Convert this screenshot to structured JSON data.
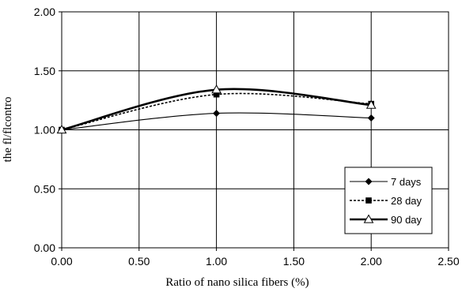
{
  "chart_data": {
    "type": "line",
    "xlabel": "Ratio of nano silica fibers (%)",
    "ylabel": "the fl/flcontro",
    "xlim": [
      0,
      2.5
    ],
    "ylim": [
      0,
      2
    ],
    "x_ticks": [
      "0.00",
      "0.50",
      "1.00",
      "1.50",
      "2.00",
      "2.50"
    ],
    "y_ticks": [
      "0.00",
      "0.50",
      "1.00",
      "1.50",
      "2.00"
    ],
    "grid": true,
    "legend_position": "bottom-right",
    "x": [
      0,
      1,
      2
    ],
    "series": [
      {
        "name": "7 days",
        "values": [
          1.0,
          1.14,
          1.1
        ],
        "marker": "diamond",
        "line_style": "solid-thin",
        "color": "#000000"
      },
      {
        "name": "28 day",
        "values": [
          1.0,
          1.3,
          1.22
        ],
        "marker": "square",
        "line_style": "dotted",
        "color": "#000000"
      },
      {
        "name": "90 day",
        "values": [
          1.0,
          1.34,
          1.21
        ],
        "marker": "triangle-open",
        "line_style": "solid-thick",
        "color": "#000000"
      }
    ]
  }
}
